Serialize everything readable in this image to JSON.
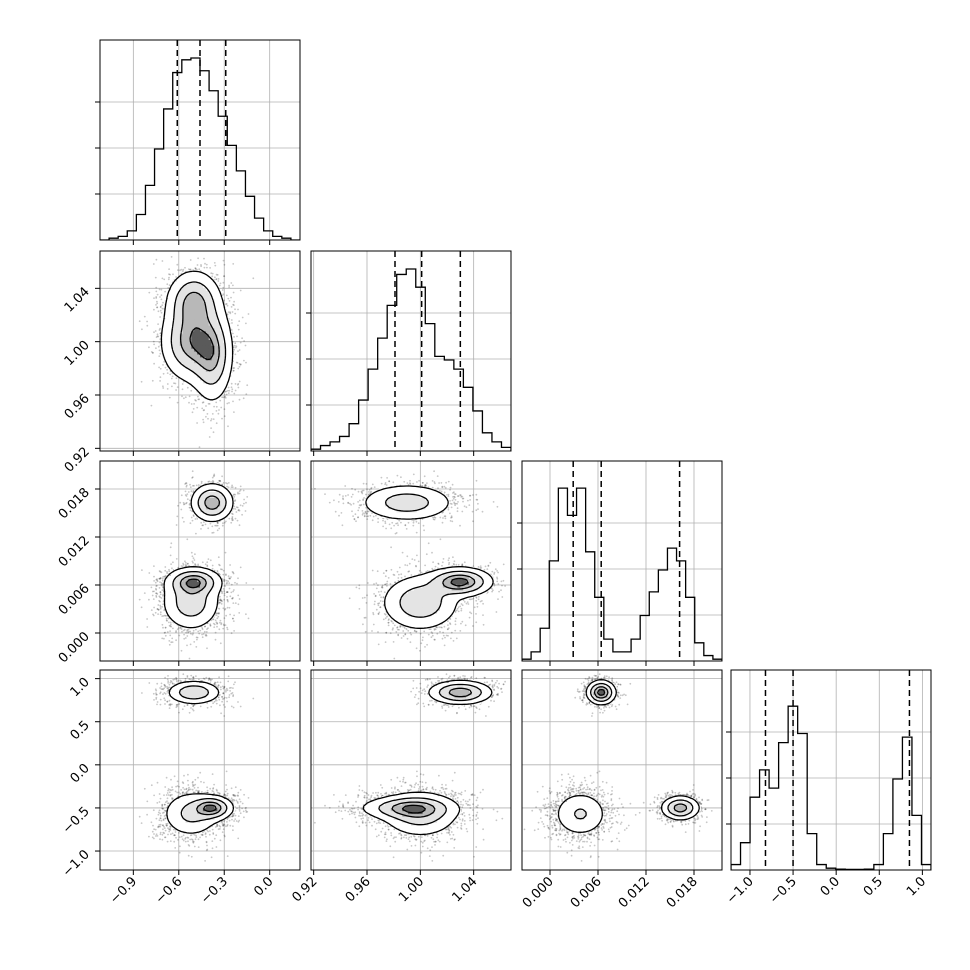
{
  "chart_data": {
    "type": "corner",
    "parameters": [
      {
        "key": "p0",
        "range": [
          -1.12,
          0.2
        ],
        "ticks": [
          -0.9,
          -0.6,
          -0.3,
          0.0
        ],
        "tick_labels": [
          "−0.9",
          "−0.6",
          "−0.3",
          "0.0"
        ],
        "quantiles": [
          -0.61,
          -0.46,
          -0.29
        ]
      },
      {
        "key": "p1",
        "range": [
          0.918,
          1.068
        ],
        "ticks": [
          0.92,
          0.96,
          1.0,
          1.04
        ],
        "tick_labels": [
          "0.92",
          "0.96",
          "1.00",
          "1.04"
        ],
        "quantiles": [
          0.981,
          1.001,
          1.03
        ]
      },
      {
        "key": "p2",
        "range": [
          -0.0035,
          0.0215
        ],
        "ticks": [
          0.0,
          0.006,
          0.012,
          0.018
        ],
        "tick_labels": [
          "0.000",
          "0.006",
          "0.012",
          "0.018"
        ],
        "quantiles": [
          0.0029,
          0.0064,
          0.0162
        ]
      },
      {
        "key": "p3",
        "range": [
          -1.22,
          1.1
        ],
        "ticks": [
          -1.0,
          -0.5,
          0.0,
          0.5,
          1.0
        ],
        "tick_labels": [
          "−1.0",
          "−0.5",
          "0.0",
          "0.5",
          "1.0"
        ],
        "quantiles": [
          -0.82,
          -0.5,
          0.85
        ]
      }
    ],
    "histograms": [
      [
        0.0,
        0.01,
        0.02,
        0.05,
        0.14,
        0.3,
        0.5,
        0.72,
        0.92,
        0.99,
        1.0,
        0.93,
        0.82,
        0.68,
        0.52,
        0.38,
        0.24,
        0.12,
        0.05,
        0.02,
        0.01,
        0.0
      ],
      [
        0.01,
        0.03,
        0.05,
        0.08,
        0.15,
        0.28,
        0.45,
        0.62,
        0.8,
        0.97,
        1.0,
        0.9,
        0.7,
        0.52,
        0.5,
        0.45,
        0.35,
        0.22,
        0.1,
        0.05,
        0.02
      ],
      [
        0.01,
        0.05,
        0.18,
        0.55,
        0.95,
        0.8,
        0.95,
        0.6,
        0.35,
        0.12,
        0.05,
        0.05,
        0.12,
        0.25,
        0.38,
        0.5,
        0.62,
        0.55,
        0.35,
        0.1,
        0.03,
        0.01
      ],
      [
        0.03,
        0.15,
        0.4,
        0.55,
        0.45,
        0.7,
        0.9,
        0.75,
        0.2,
        0.03,
        0.01,
        0.005,
        0.003,
        0.003,
        0.005,
        0.03,
        0.2,
        0.5,
        0.73,
        0.3,
        0.03
      ]
    ],
    "modes": [
      {
        "w": 0.42,
        "mean": [
          -0.52,
          1.0,
          0.0038,
          -0.57
        ],
        "sd": [
          0.1,
          0.015,
          0.0018,
          0.14
        ]
      },
      {
        "w": 0.28,
        "mean": [
          -0.5,
          1.03,
          0.0064,
          0.84
        ],
        "sd": [
          0.09,
          0.012,
          0.0009,
          0.07
        ]
      },
      {
        "w": 0.3,
        "mean": [
          -0.38,
          0.99,
          0.0163,
          -0.5
        ],
        "sd": [
          0.07,
          0.018,
          0.0012,
          0.07
        ]
      }
    ],
    "grid": true,
    "contours": true,
    "quantile_lines": "dashed"
  }
}
